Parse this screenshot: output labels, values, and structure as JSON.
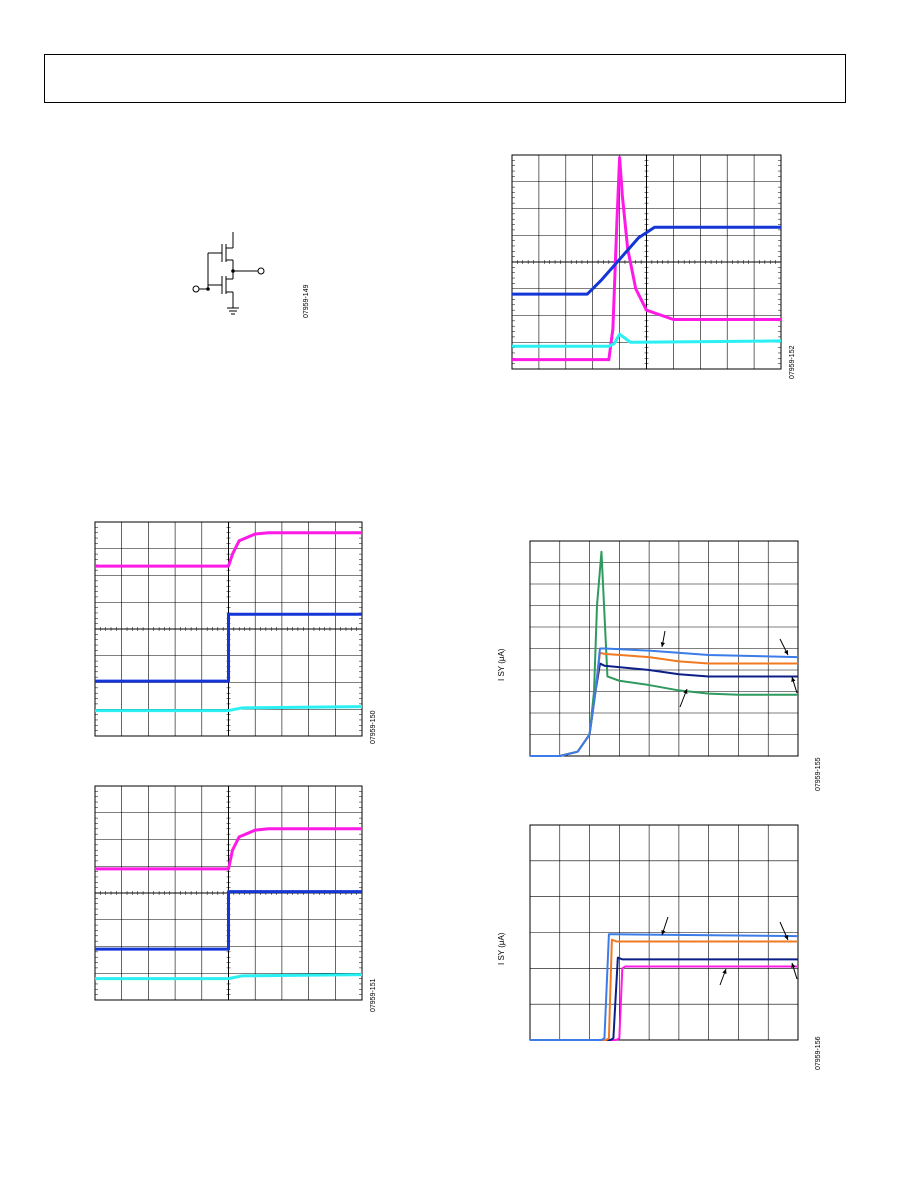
{
  "colors": {
    "magenta": "#ff19e6",
    "blue": "#1536d6",
    "cyan": "#2af0f4",
    "light_blue": "#3b7ce8",
    "orange": "#f07a22",
    "navy": "#0c1f86",
    "green": "#2f9a5e"
  },
  "figure_codes": {
    "circuit": "07959-149",
    "scope_a": "07959-150",
    "scope_b": "07959-151",
    "scope_c": "07959-152",
    "isy_a": "07959-155",
    "isy_b": "07959-156"
  },
  "axis_labels": {
    "isy_a_ylabel": "I SY (μA)",
    "isy_b_ylabel": "I SY (μA)"
  },
  "chart_data": [
    {
      "type": "line",
      "id": "scope_a",
      "grid": true,
      "divisions": [
        10,
        8
      ],
      "ylim": [
        0,
        8
      ],
      "xlim": [
        0,
        10
      ],
      "series": [
        {
          "color_key": "magenta",
          "x": [
            0,
            5.0,
            5.15,
            5.4,
            6.0,
            6.5,
            10
          ],
          "y": [
            6.35,
            6.35,
            6.8,
            7.3,
            7.55,
            7.6,
            7.6
          ]
        },
        {
          "color_key": "blue",
          "x": [
            0,
            5.0,
            5.0,
            10
          ],
          "y": [
            2.05,
            2.05,
            4.55,
            4.55
          ]
        },
        {
          "color_key": "cyan",
          "x": [
            0,
            5.0,
            5.5,
            10
          ],
          "y": [
            0.95,
            0.95,
            1.05,
            1.1
          ]
        }
      ]
    },
    {
      "type": "line",
      "id": "scope_b",
      "grid": true,
      "divisions": [
        10,
        8
      ],
      "ylim": [
        0,
        8
      ],
      "xlim": [
        0,
        10
      ],
      "series": [
        {
          "color_key": "magenta",
          "x": [
            0,
            5.0,
            5.15,
            5.4,
            6.0,
            6.5,
            10
          ],
          "y": [
            4.9,
            4.9,
            5.6,
            6.1,
            6.35,
            6.4,
            6.4
          ]
        },
        {
          "color_key": "blue",
          "x": [
            0,
            5.0,
            5.0,
            10
          ],
          "y": [
            1.9,
            1.9,
            4.05,
            4.05
          ]
        },
        {
          "color_key": "cyan",
          "x": [
            0,
            5.0,
            5.5,
            10
          ],
          "y": [
            0.8,
            0.8,
            0.9,
            0.95
          ]
        }
      ]
    },
    {
      "type": "line",
      "id": "scope_c",
      "grid": true,
      "divisions": [
        10,
        8
      ],
      "ylim": [
        0,
        8
      ],
      "xlim": [
        0,
        10
      ],
      "series": [
        {
          "color_key": "magenta",
          "x": [
            0,
            3.6,
            3.75,
            3.9,
            4.0,
            4.1,
            4.3,
            4.6,
            5.0,
            6.0,
            10
          ],
          "y": [
            0.35,
            0.35,
            1.5,
            5.5,
            7.9,
            6.5,
            4.5,
            3.0,
            2.2,
            1.85,
            1.85
          ]
        },
        {
          "color_key": "blue",
          "x": [
            0,
            2.8,
            3.3,
            4.0,
            4.7,
            5.3,
            10
          ],
          "y": [
            2.8,
            2.8,
            3.3,
            4.1,
            4.9,
            5.3,
            5.3
          ]
        },
        {
          "color_key": "cyan",
          "x": [
            0,
            3.6,
            3.8,
            4.0,
            4.4,
            10
          ],
          "y": [
            0.85,
            0.85,
            0.95,
            1.3,
            1.0,
            1.05
          ]
        }
      ]
    },
    {
      "type": "line",
      "id": "isy_a",
      "grid": true,
      "divisions": [
        9,
        10
      ],
      "ylim": [
        0,
        10
      ],
      "xlim": [
        0,
        9
      ],
      "series": [
        {
          "color_key": "green",
          "x": [
            0,
            1.0,
            1.6,
            2.0,
            2.15,
            2.25,
            2.4,
            2.6,
            3.0,
            4.0,
            5.0,
            6.0,
            7.0,
            9.0
          ],
          "y": [
            0,
            0,
            0.2,
            1.0,
            3.0,
            7.0,
            9.5,
            3.7,
            3.5,
            3.3,
            3.05,
            2.9,
            2.85,
            2.85
          ]
        },
        {
          "color_key": "navy",
          "x": [
            0,
            1.0,
            1.6,
            2.0,
            2.2,
            2.35,
            2.5,
            4.0,
            5.0,
            6.0,
            9.0
          ],
          "y": [
            0,
            0,
            0.2,
            1.0,
            3.0,
            4.3,
            4.2,
            4.0,
            3.8,
            3.7,
            3.7
          ]
        },
        {
          "color_key": "orange",
          "x": [
            0,
            1.0,
            1.6,
            2.0,
            2.2,
            2.35,
            2.5,
            4.0,
            5.0,
            6.0,
            9.0
          ],
          "y": [
            0,
            0,
            0.2,
            1.0,
            3.0,
            4.8,
            4.75,
            4.6,
            4.4,
            4.3,
            4.3
          ]
        },
        {
          "color_key": "light_blue",
          "x": [
            0,
            1.0,
            1.6,
            2.0,
            2.2,
            2.35,
            2.5,
            4.0,
            6.0,
            9.0
          ],
          "y": [
            0,
            0,
            0.2,
            1.0,
            3.0,
            5.0,
            5.0,
            4.9,
            4.7,
            4.6
          ]
        }
      ]
    },
    {
      "type": "line",
      "id": "isy_b",
      "grid": true,
      "divisions": [
        9,
        6
      ],
      "ylim": [
        0,
        6
      ],
      "xlim": [
        0,
        9
      ],
      "series": [
        {
          "color_key": "magenta",
          "x": [
            0,
            2.9,
            3.0,
            3.1,
            3.2,
            9.0
          ],
          "y": [
            0,
            0,
            0.05,
            2.0,
            2.05,
            2.05
          ]
        },
        {
          "color_key": "navy",
          "x": [
            0,
            2.7,
            2.8,
            2.95,
            3.1,
            9.0
          ],
          "y": [
            0,
            0,
            0.05,
            2.3,
            2.25,
            2.25
          ]
        },
        {
          "color_key": "orange",
          "x": [
            0,
            2.55,
            2.65,
            2.75,
            2.9,
            9.0
          ],
          "y": [
            0,
            0,
            0.05,
            2.8,
            2.75,
            2.75
          ]
        },
        {
          "color_key": "light_blue",
          "x": [
            0,
            2.4,
            2.5,
            2.65,
            2.8,
            9.0
          ],
          "y": [
            0,
            0,
            0.05,
            2.95,
            2.95,
            2.9
          ]
        }
      ]
    }
  ]
}
